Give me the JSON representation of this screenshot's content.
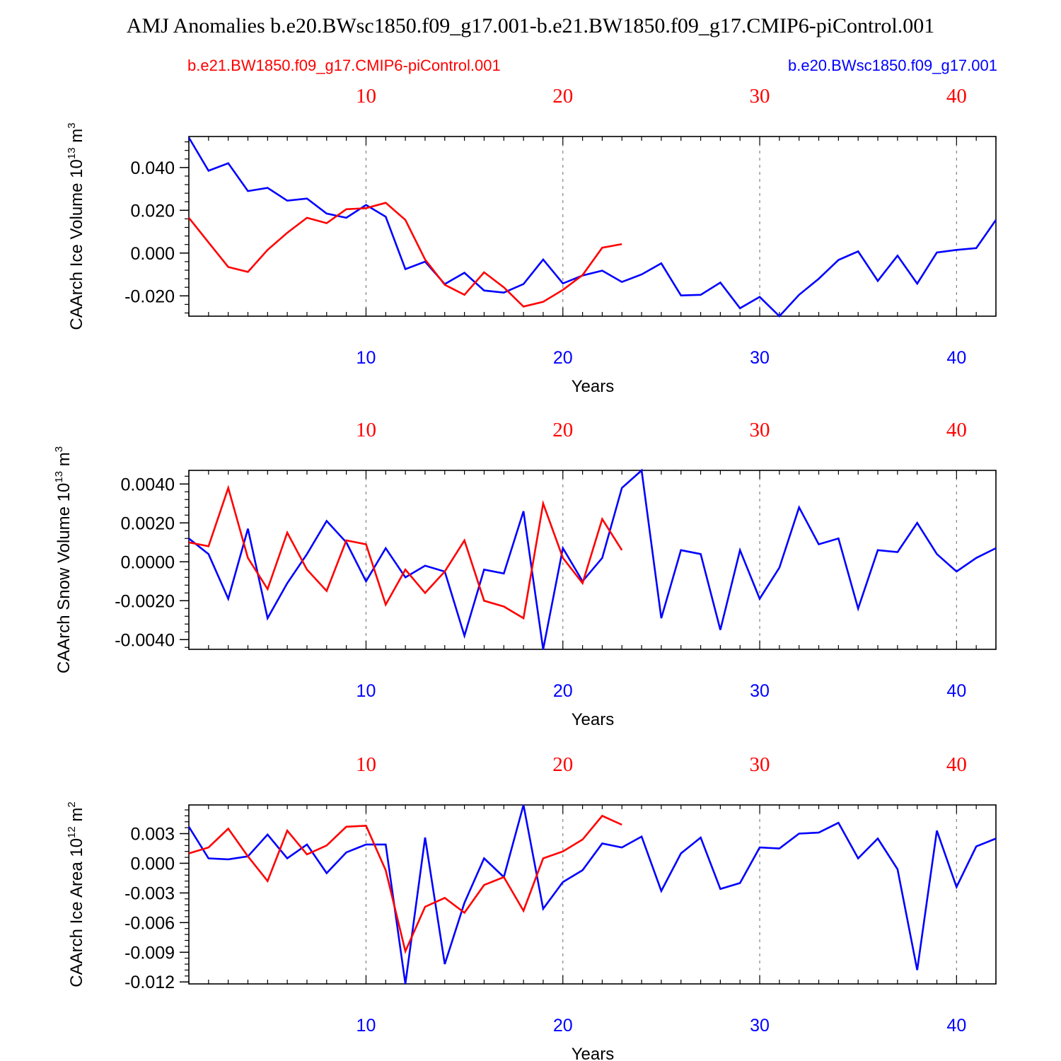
{
  "title": "AMJ Anomalies b.e20.BWsc1850.f09_g17.001-b.e21.BW1850.f09_g17.CMIP6-piControl.001",
  "legend": {
    "left": "b.e21.BW1850.f09_g17.CMIP6-piControl.001",
    "right": "b.e20.BWsc1850.f09_g17.001"
  },
  "colors": {
    "red": "#ff0000",
    "blue": "#0000ff",
    "grid": "#808080"
  },
  "x_ticks": [
    "10",
    "20",
    "30",
    "40"
  ],
  "chart_data": [
    {
      "type": "line",
      "xlabel": "Years",
      "ylabel_base": "CAArch Ice Volume 10",
      "ylabel_exp": "13",
      "ylabel_unit": " m",
      "ylabel_unit_exp": "3",
      "xlim": [
        1,
        42
      ],
      "ylim": [
        -0.0295,
        0.0545
      ],
      "yticks": [
        "0.040",
        "0.020",
        "0.000",
        "-0.020"
      ],
      "series": [
        {
          "name": "b.e20.BWsc1850.f09_g17.001",
          "color": "blue",
          "x": [
            1,
            2,
            3,
            4,
            5,
            6,
            7,
            8,
            9,
            10,
            11,
            12,
            13,
            14,
            15,
            16,
            17,
            18,
            19,
            20,
            21,
            22,
            23,
            24,
            25,
            26,
            27,
            28,
            29,
            30,
            31,
            32,
            33,
            34,
            35,
            36,
            37,
            38,
            39,
            40,
            41,
            42
          ],
          "values": [
            0.054,
            0.0385,
            0.042,
            0.029,
            0.0305,
            0.0245,
            0.0255,
            0.0185,
            0.0165,
            0.0225,
            0.017,
            -0.0075,
            -0.004,
            -0.0145,
            -0.0092,
            -0.0175,
            -0.0185,
            -0.0145,
            -0.003,
            -0.0142,
            -0.0105,
            -0.0082,
            -0.0135,
            -0.01,
            -0.0048,
            -0.0198,
            -0.0195,
            -0.0138,
            -0.0258,
            -0.0205,
            -0.0295,
            -0.0195,
            -0.012,
            -0.0032,
            0.0008,
            -0.013,
            -0.0012,
            -0.0143,
            0.0003,
            0.0015,
            0.0023,
            0.0155
          ]
        },
        {
          "name": "b.e21.BW1850.f09_g17.CMIP6-piControl.001",
          "color": "red",
          "x": [
            1,
            2,
            3,
            4,
            5,
            6,
            7,
            8,
            9,
            10,
            11,
            12,
            13,
            14,
            15,
            16,
            17,
            18,
            19,
            20,
            21,
            22,
            23
          ],
          "values": [
            0.0165,
            0.005,
            -0.0065,
            -0.0088,
            0.0015,
            0.0095,
            0.0165,
            0.014,
            0.0205,
            0.021,
            0.0235,
            0.0155,
            -0.003,
            -0.0148,
            -0.0195,
            -0.009,
            -0.016,
            -0.025,
            -0.0228,
            -0.0172,
            -0.0103,
            0.0025,
            0.0042
          ]
        }
      ]
    },
    {
      "type": "line",
      "xlabel": "Years",
      "ylabel_base": "CAArch Snow Volume 10",
      "ylabel_exp": "13",
      "ylabel_unit": " m",
      "ylabel_unit_exp": "3",
      "xlim": [
        1,
        42
      ],
      "ylim": [
        -0.0045,
        0.0047
      ],
      "yticks": [
        "0.0040",
        "0.0020",
        "0.0000",
        "-0.0020",
        "-0.0040"
      ],
      "series": [
        {
          "name": "b.e20.BWsc1850.f09_g17.001",
          "color": "blue",
          "x": [
            1,
            2,
            3,
            4,
            5,
            6,
            7,
            8,
            9,
            10,
            11,
            12,
            13,
            14,
            15,
            16,
            17,
            18,
            19,
            20,
            21,
            22,
            23,
            24,
            25,
            26,
            27,
            28,
            29,
            30,
            31,
            32,
            33,
            34,
            35,
            36,
            37,
            38,
            39,
            40,
            41,
            42
          ],
          "values": [
            0.0012,
            0.0004,
            -0.0019,
            0.0017,
            -0.0029,
            -0.0011,
            0.0004,
            0.0021,
            0.001,
            -0.001,
            0.0007,
            -0.0008,
            -0.0002,
            -0.0005,
            -0.0038,
            -0.0004,
            -0.0006,
            0.0026,
            -0.0045,
            0.0007,
            -0.001,
            0.0002,
            0.0038,
            0.0047,
            -0.0029,
            0.0006,
            0.0004,
            -0.0035,
            0.0006,
            -0.0019,
            -0.0003,
            0.0028,
            0.0009,
            0.0012,
            -0.0024,
            0.0006,
            0.0005,
            0.002,
            0.0004,
            -0.0005,
            0.0002,
            0.0007
          ]
        },
        {
          "name": "b.e21.BW1850.f09_g17.CMIP6-piControl.001",
          "color": "red",
          "x": [
            1,
            2,
            3,
            4,
            5,
            6,
            7,
            8,
            9,
            10,
            11,
            12,
            13,
            14,
            15,
            16,
            17,
            18,
            19,
            20,
            21,
            22,
            23
          ],
          "values": [
            0.001,
            0.0008,
            0.0038,
            0.0002,
            -0.0014,
            0.0015,
            -0.0004,
            -0.0015,
            0.0011,
            0.0009,
            -0.0022,
            -0.0004,
            -0.0016,
            -0.0005,
            0.0011,
            -0.002,
            -0.0023,
            -0.0029,
            0.003,
            0.0002,
            -0.0011,
            0.0022,
            0.0006
          ]
        }
      ]
    },
    {
      "type": "line",
      "xlabel": "Years",
      "ylabel_base": "CAArch Ice Area 10",
      "ylabel_exp": "12",
      "ylabel_unit": " m",
      "ylabel_unit_exp": "2",
      "xlim": [
        1,
        42
      ],
      "ylim": [
        -0.0122,
        0.0059
      ],
      "yticks": [
        "0.003",
        "0.000",
        "-0.003",
        "-0.006",
        "-0.009",
        "-0.012"
      ],
      "series": [
        {
          "name": "b.e20.BWsc1850.f09_g17.001",
          "color": "blue",
          "x": [
            1,
            2,
            3,
            4,
            5,
            6,
            7,
            8,
            9,
            10,
            11,
            12,
            13,
            14,
            15,
            16,
            17,
            18,
            19,
            20,
            21,
            22,
            23,
            24,
            25,
            26,
            27,
            28,
            29,
            30,
            31,
            32,
            33,
            34,
            35,
            36,
            37,
            38,
            39,
            40,
            41,
            42
          ],
          "values": [
            0.0037,
            0.0005,
            0.0004,
            0.0007,
            0.0029,
            0.0005,
            0.0019,
            -0.001,
            0.0011,
            0.0019,
            0.0019,
            -0.0122,
            0.0026,
            -0.0102,
            -0.004,
            0.0005,
            -0.0014,
            0.0059,
            -0.0046,
            -0.0019,
            -0.0007,
            0.002,
            0.0016,
            0.0027,
            -0.0028,
            0.001,
            0.0026,
            -0.0026,
            -0.002,
            0.0016,
            0.0015,
            0.003,
            0.0031,
            0.0041,
            0.0005,
            0.0025,
            -0.0006,
            -0.0108,
            0.0033,
            -0.0024,
            0.0017,
            0.0025
          ]
        },
        {
          "name": "b.e21.BW1850.f09_g17.CMIP6-piControl.001",
          "color": "red",
          "x": [
            1,
            2,
            3,
            4,
            5,
            6,
            7,
            8,
            9,
            10,
            11,
            12,
            13,
            14,
            15,
            16,
            17,
            18,
            19,
            20,
            21,
            22,
            23
          ],
          "values": [
            0.001,
            0.0016,
            0.0035,
            0.0007,
            -0.0018,
            0.0033,
            0.0009,
            0.0018,
            0.0037,
            0.0038,
            -0.0007,
            -0.0089,
            -0.0044,
            -0.0035,
            -0.005,
            -0.0022,
            -0.0014,
            -0.0048,
            0.0005,
            0.0012,
            0.0024,
            0.0048,
            0.0039
          ]
        }
      ]
    }
  ]
}
